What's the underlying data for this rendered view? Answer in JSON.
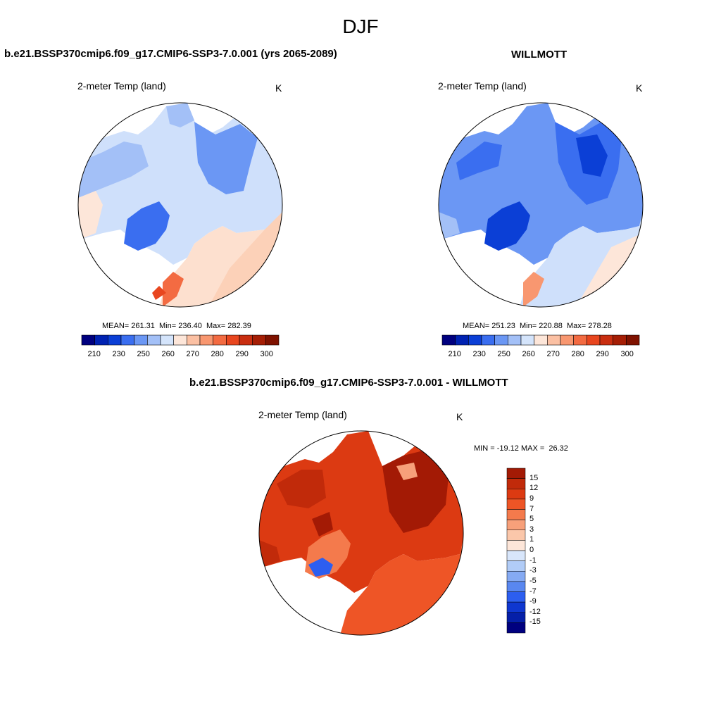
{
  "title": "DJF",
  "panels": [
    {
      "title": "b.e21.BSSP370cmip6.f09_g17.CMIP6-SSP3-7.0.001 (yrs 2065-2089)",
      "variable": "2-meter Temp (land)",
      "units": "K",
      "stats": "MEAN= 261.31  Min= 236.40  Max= 282.39"
    },
    {
      "title": "WILLMOTT",
      "variable": "2-meter Temp (land)",
      "units": "K",
      "stats": "MEAN= 251.23  Min= 220.88  Max= 278.28"
    },
    {
      "title": "b.e21.BSSP370cmip6.f09_g17.CMIP6-SSP3-7.0.001 - WILLMOTT",
      "variable": "2-meter Temp (land)",
      "units": "K",
      "stats": "MIN = -19.12 MAX =  26.32"
    }
  ],
  "abs_colorbar": {
    "ticks": [
      "210",
      "230",
      "250",
      "260",
      "270",
      "280",
      "290",
      "300"
    ],
    "colors": [
      "#00007f",
      "#0022b2",
      "#0b3fd6",
      "#3a6ef0",
      "#6b97f4",
      "#a3c0f7",
      "#d4e4fb",
      "#fde6d9",
      "#fbc0a3",
      "#f89770",
      "#f36b42",
      "#e8461f",
      "#c92e10",
      "#a51e05",
      "#7f1200"
    ]
  },
  "diff_colorbar": {
    "labels": [
      "15",
      "12",
      "9",
      "7",
      "5",
      "3",
      "1",
      "0",
      "-1",
      "-3",
      "-5",
      "-7",
      "-9",
      "-12",
      "-15"
    ],
    "colors": [
      "#a31a05",
      "#c12a0a",
      "#dc3a12",
      "#ee5526",
      "#f47a4c",
      "#f7a07a",
      "#fbc7aa",
      "#fde6d9",
      "#d8e6fb",
      "#b1ccf7",
      "#85aaf3",
      "#5987f0",
      "#2c5ef0",
      "#0f37d0",
      "#051fa8",
      "#00007f"
    ]
  }
}
